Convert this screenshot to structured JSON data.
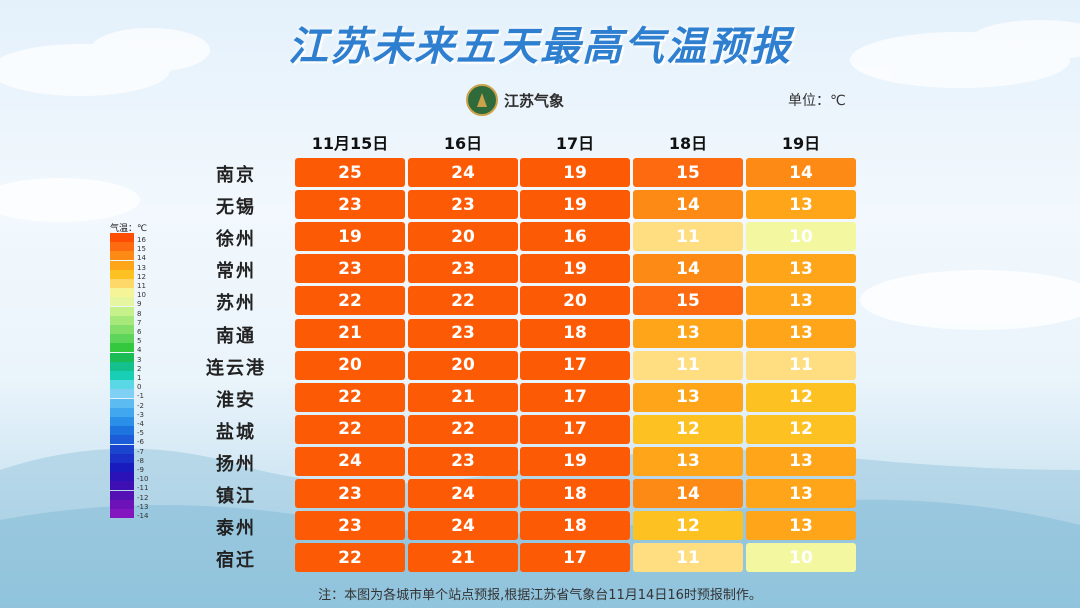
{
  "title": "江苏未来五天最高气温预报",
  "logo_text": "江苏气象",
  "unit_label": "单位：℃",
  "note": "注：本图为各城市单个站点预报,根据江苏省气象台11月14日16时预报制作。",
  "chart_data": {
    "type": "table",
    "columns": [
      "11月15日",
      "16日",
      "17日",
      "18日",
      "19日"
    ],
    "rows": [
      {
        "city": "南京",
        "values": [
          25,
          24,
          19,
          15,
          14
        ]
      },
      {
        "city": "无锡",
        "values": [
          23,
          23,
          19,
          14,
          13
        ]
      },
      {
        "city": "徐州",
        "values": [
          19,
          20,
          16,
          11,
          10
        ]
      },
      {
        "city": "常州",
        "values": [
          23,
          23,
          19,
          14,
          13
        ]
      },
      {
        "city": "苏州",
        "values": [
          22,
          22,
          20,
          15,
          13
        ]
      },
      {
        "city": "南通",
        "values": [
          21,
          23,
          18,
          13,
          13
        ]
      },
      {
        "city": "连云港",
        "values": [
          20,
          20,
          17,
          11,
          11
        ]
      },
      {
        "city": "淮安",
        "values": [
          22,
          21,
          17,
          13,
          12
        ]
      },
      {
        "city": "盐城",
        "values": [
          22,
          22,
          17,
          12,
          12
        ]
      },
      {
        "city": "扬州",
        "values": [
          24,
          23,
          19,
          13,
          13
        ]
      },
      {
        "city": "镇江",
        "values": [
          23,
          24,
          18,
          14,
          13
        ]
      },
      {
        "city": "泰州",
        "values": [
          23,
          24,
          18,
          12,
          13
        ]
      },
      {
        "city": "宿迁",
        "values": [
          22,
          21,
          17,
          11,
          10
        ]
      }
    ]
  },
  "legend": {
    "title": "气温：℃",
    "labels": [
      "16",
      "15",
      "14",
      "13",
      "12",
      "11",
      "10",
      "9",
      "8",
      "7",
      "6",
      "5",
      "4",
      "3",
      "2",
      "1",
      "0",
      "-1",
      "-2",
      "-3",
      "-4",
      "-5",
      "-6",
      "-7",
      "-8",
      "-9",
      "-10",
      "-11",
      "-12",
      "-13",
      "-14"
    ],
    "colors": [
      "#fd4e04",
      "#fd6a10",
      "#fd8a14",
      "#fea51a",
      "#fec122",
      "#ffd86a",
      "#f5f598",
      "#e6f5a0",
      "#c5f08a",
      "#a6e87a",
      "#84de6a",
      "#5fd45a",
      "#34c83e",
      "#1bbc54",
      "#14c08c",
      "#18cfb6",
      "#5ad8e6",
      "#7fd0f4",
      "#5cbcf2",
      "#41a7ee",
      "#2a8fe8",
      "#1e74df",
      "#1d5cd8",
      "#1c45cf",
      "#1a30c6",
      "#1a1bbe",
      "#2a12b8",
      "#3e10b4",
      "#5510b4",
      "#6c12b8",
      "#8416bf"
    ]
  }
}
